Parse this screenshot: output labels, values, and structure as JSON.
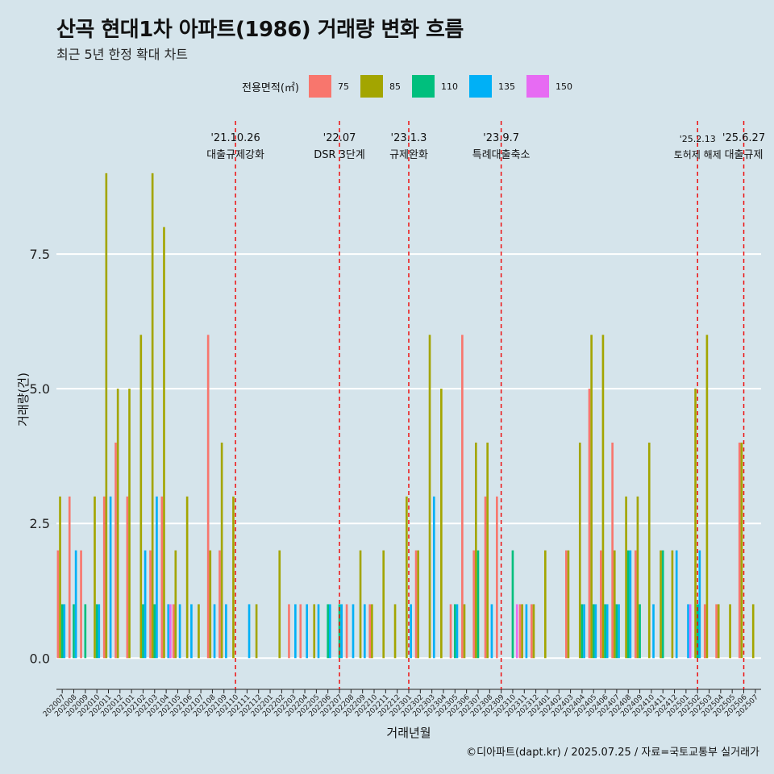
{
  "title": "산곡 현대1차 아파트(1986) 거래량 변화 흐름",
  "subtitle": "최근 5년 한정 확대 차트",
  "caption": "©디아파트(dapt.kr) / 2025.07.25 / 자료=국토교통부 실거래가",
  "legend": {
    "title": "전용면적(㎡)",
    "items": [
      {
        "label": "75",
        "color": "#f8766d"
      },
      {
        "label": "85",
        "color": "#a3a500"
      },
      {
        "label": "110",
        "color": "#00bf7d"
      },
      {
        "label": "135",
        "color": "#00b0f6"
      },
      {
        "label": "150",
        "color": "#e76bf3"
      }
    ]
  },
  "chart_data": {
    "type": "bar",
    "title": "산곡 현대1차 아파트(1986) 거래량 변화 흐름",
    "xlabel": "거래년월",
    "ylabel": "거래량(건)",
    "ylim": [
      -0.4,
      10.0
    ],
    "yticks": [
      0.0,
      2.5,
      5.0,
      7.5
    ],
    "ytick_labels": [
      "0.0",
      "2.5",
      "5.0",
      "7.5"
    ],
    "grid": true,
    "legend_position": "top",
    "categories": [
      "202007",
      "202008",
      "202009",
      "202010",
      "202011",
      "202012",
      "202101",
      "202102",
      "202103",
      "202104",
      "202105",
      "202106",
      "202107",
      "202108",
      "202109",
      "202110",
      "202111",
      "202112",
      "202201",
      "202202",
      "202203",
      "202204",
      "202205",
      "202206",
      "202207",
      "202208",
      "202209",
      "202210",
      "202211",
      "202212",
      "202301",
      "202302",
      "202303",
      "202304",
      "202305",
      "202306",
      "202307",
      "202308",
      "202309",
      "202310",
      "202311",
      "202312",
      "202401",
      "202402",
      "202403",
      "202404",
      "202405",
      "202406",
      "202407",
      "202408",
      "202409",
      "202410",
      "202411",
      "202412",
      "202501",
      "202502",
      "202503",
      "202504",
      "202505",
      "202506",
      "202507"
    ],
    "series": [
      {
        "name": "75",
        "color": "#f8766d",
        "values": [
          2,
          3,
          2,
          0,
          3,
          4,
          3,
          0,
          2,
          3,
          1,
          0,
          0,
          6,
          2,
          0,
          0,
          0,
          0,
          0,
          1,
          1,
          0,
          0,
          0,
          1,
          0,
          1,
          0,
          0,
          0,
          2,
          0,
          0,
          1,
          6,
          2,
          3,
          3,
          0,
          1,
          1,
          0,
          0,
          2,
          0,
          5,
          2,
          4,
          0,
          2,
          0,
          0,
          0,
          0,
          0,
          1,
          1,
          0,
          4,
          0
        ]
      },
      {
        "name": "85",
        "color": "#a3a500",
        "values": [
          3,
          0,
          0,
          3,
          9,
          5,
          5,
          6,
          9,
          8,
          2,
          3,
          1,
          2,
          4,
          3,
          0,
          1,
          0,
          2,
          0,
          0,
          1,
          0,
          0,
          0,
          2,
          1,
          2,
          1,
          3,
          2,
          6,
          5,
          0,
          1,
          4,
          4,
          0,
          0,
          1,
          1,
          2,
          0,
          2,
          4,
          6,
          6,
          2,
          3,
          3,
          4,
          2,
          2,
          0,
          5,
          6,
          1,
          1,
          4,
          1
        ]
      },
      {
        "name": "110",
        "color": "#00bf7d",
        "values": [
          1,
          1,
          1,
          1,
          0,
          0,
          0,
          1,
          1,
          0,
          0,
          0,
          0,
          0,
          0,
          0,
          0,
          0,
          0,
          0,
          0,
          0,
          0,
          1,
          1,
          0,
          0,
          0,
          0,
          0,
          0,
          0,
          0,
          0,
          1,
          0,
          2,
          0,
          0,
          2,
          0,
          0,
          0,
          0,
          0,
          1,
          1,
          1,
          1,
          2,
          1,
          0,
          2,
          0,
          0,
          1,
          0,
          0,
          0,
          0,
          0
        ]
      },
      {
        "name": "135",
        "color": "#00b0f6",
        "values": [
          1,
          2,
          0,
          1,
          3,
          0,
          0,
          2,
          3,
          1,
          1,
          1,
          0,
          1,
          1,
          0,
          1,
          0,
          0,
          0,
          1,
          1,
          1,
          1,
          1,
          1,
          1,
          0,
          0,
          0,
          1,
          0,
          3,
          0,
          1,
          0,
          0,
          1,
          0,
          0,
          1,
          0,
          0,
          0,
          0,
          1,
          1,
          1,
          1,
          2,
          0,
          1,
          0,
          2,
          1,
          2,
          0,
          0,
          0,
          0,
          0
        ]
      },
      {
        "name": "150",
        "color": "#e76bf3",
        "values": [
          0,
          0,
          0,
          0,
          0,
          0,
          0,
          0,
          0,
          1,
          0,
          0,
          0,
          0,
          0,
          0,
          0,
          0,
          0,
          0,
          0,
          0,
          0,
          0,
          0,
          0,
          0,
          0,
          0,
          0,
          0,
          0,
          0,
          0,
          0,
          0,
          0,
          0,
          0,
          1,
          0,
          0,
          0,
          0,
          0,
          0,
          0,
          0,
          0,
          0,
          0,
          0,
          0,
          0,
          1,
          0,
          0,
          0,
          0,
          0,
          0
        ]
      }
    ],
    "annotations": [
      {
        "date": "'21.10.26",
        "text": "대출규제강화",
        "at_category": "202110"
      },
      {
        "date": "'22.07",
        "text": "DSR 3단계",
        "at_category": "202207"
      },
      {
        "date": "'23.1.3",
        "text": "규제완화",
        "at_category": "202301"
      },
      {
        "date": "'23.9.7",
        "text": "특례대출축소",
        "at_category": "202309"
      },
      {
        "date": "'25.2.13",
        "text": "토허제 해제",
        "at_category": "202502"
      },
      {
        "date": "'25.6.27",
        "text": "대출규제",
        "at_category": "202506"
      }
    ]
  }
}
